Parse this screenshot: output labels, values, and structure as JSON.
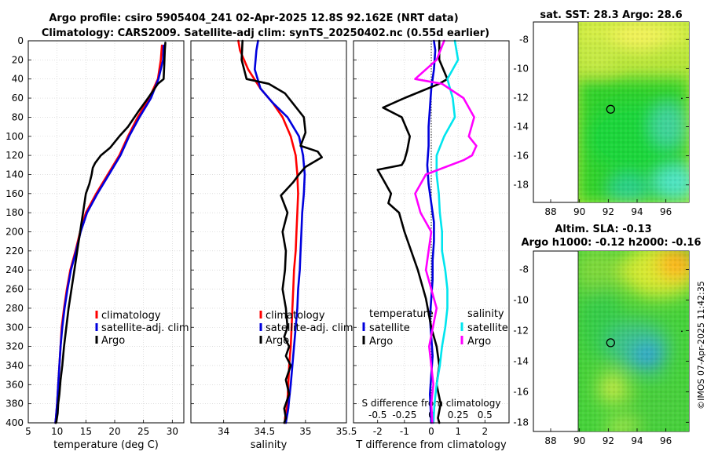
{
  "title": {
    "line1": "Argo profile: csiro 5905404_241 02-Apr-2025 12.8S 92.162E (NRT data)",
    "line2": "Climatology: CARS2009. Satellite-adj clim: synTS_20250402.nc (0.55d earlier)"
  },
  "stamp": "©IMOS 07-Apr-2025 11:42:35",
  "colors": {
    "climatology": "#ff0000",
    "satellite": "#0000dd",
    "argo": "#000000",
    "salinity_satellite": "#00e5ee",
    "salinity_argo": "#ff00ff",
    "grid": "#cccccc"
  },
  "chart_data": [
    {
      "type": "line",
      "title": "",
      "xlabel": "temperature (deg C)",
      "ylabel": "",
      "xlim": [
        5,
        32
      ],
      "ylim": [
        400,
        0
      ],
      "xticks": [
        5,
        10,
        15,
        20,
        25,
        30
      ],
      "xtick_labels": [
        "5",
        "10",
        "15",
        "20",
        "25",
        "30"
      ],
      "yticks": [
        0,
        20,
        40,
        60,
        80,
        100,
        120,
        140,
        160,
        180,
        200,
        220,
        240,
        260,
        280,
        300,
        320,
        340,
        360,
        380,
        400
      ],
      "ytick_labels": [
        "0",
        "20",
        "40",
        "60",
        "80",
        "100",
        "120",
        "140",
        "160",
        "180",
        "200",
        "220",
        "240",
        "260",
        "280",
        "300",
        "320",
        "340",
        "360",
        "380",
        "400"
      ],
      "grid": true,
      "legend_position": "lower-right",
      "series": [
        {
          "name": "climatology",
          "color": "#ff0000",
          "x": [
            28.2,
            28.0,
            27.5,
            26.0,
            24.0,
            22.3,
            20.8,
            18.8,
            16.8,
            15.0,
            14.0,
            13.2,
            12.3,
            11.7,
            11.2,
            10.8,
            10.6,
            10.4,
            10.2,
            10.0,
            9.8,
            9.7
          ],
          "y": [
            5,
            20,
            40,
            60,
            80,
            100,
            120,
            140,
            160,
            180,
            200,
            220,
            240,
            260,
            280,
            300,
            320,
            340,
            360,
            380,
            395,
            400
          ]
        },
        {
          "name": "satellite-adj. clim",
          "color": "#0000dd",
          "x": [
            28.5,
            28.4,
            27.6,
            26.3,
            24.3,
            22.5,
            21.0,
            19.0,
            17.0,
            15.2,
            14.1,
            13.3,
            12.4,
            11.8,
            11.3,
            10.9,
            10.6,
            10.4,
            10.2,
            10.0,
            9.8,
            9.7
          ],
          "y": [
            5,
            20,
            40,
            60,
            80,
            100,
            120,
            140,
            160,
            180,
            200,
            220,
            240,
            260,
            280,
            300,
            320,
            340,
            360,
            380,
            395,
            400
          ]
        },
        {
          "name": "Argo",
          "color": "#000000",
          "x": [
            28.8,
            28.7,
            28.6,
            28.5,
            27.5,
            25.8,
            24.0,
            22.3,
            20.8,
            19.2,
            17.6,
            16.6,
            16.2,
            16.0,
            15.6,
            15.0,
            14.8,
            14.5,
            14.0,
            13.5,
            13.0,
            12.5,
            12.0,
            11.6,
            11.2,
            10.9,
            10.6,
            10.4,
            10.2,
            10.1,
            9.9,
            9.8
          ],
          "y": [
            2,
            10,
            25,
            40,
            45,
            60,
            75,
            90,
            100,
            112,
            120,
            128,
            133,
            140,
            150,
            160,
            168,
            180,
            200,
            220,
            240,
            260,
            280,
            300,
            320,
            340,
            355,
            370,
            380,
            390,
            398,
            400
          ]
        }
      ]
    },
    {
      "type": "line",
      "title": "",
      "xlabel": "salinity",
      "ylabel": "",
      "xlim": [
        33.6,
        35.5
      ],
      "ylim": [
        400,
        0
      ],
      "xticks": [
        34,
        34.5,
        35,
        35.5
      ],
      "xtick_labels": [
        "34",
        "34.5",
        "35",
        "35.5"
      ],
      "grid": true,
      "legend_position": "lower-right",
      "series": [
        {
          "name": "climatology",
          "color": "#ff0000",
          "x": [
            34.18,
            34.2,
            34.3,
            34.45,
            34.6,
            34.72,
            34.82,
            34.88,
            34.9,
            34.91,
            34.9,
            34.89,
            34.88,
            34.86,
            34.85,
            34.84,
            34.83,
            34.82,
            34.8,
            34.79,
            34.78,
            34.77,
            34.76,
            34.75,
            34.75
          ],
          "y": [
            0,
            10,
            30,
            50,
            65,
            80,
            100,
            120,
            140,
            160,
            180,
            200,
            220,
            240,
            260,
            280,
            300,
            320,
            340,
            360,
            375,
            385,
            390,
            395,
            400
          ]
        },
        {
          "name": "satellite-adj. clim",
          "color": "#0000dd",
          "x": [
            34.42,
            34.4,
            34.38,
            34.45,
            34.6,
            34.78,
            34.92,
            34.97,
            34.99,
            34.98,
            34.96,
            34.95,
            34.94,
            34.93,
            34.91,
            34.9,
            34.88,
            34.86,
            34.84,
            34.82,
            34.8,
            34.79,
            34.78,
            34.77,
            34.76
          ],
          "y": [
            0,
            10,
            30,
            50,
            65,
            80,
            100,
            120,
            140,
            160,
            180,
            200,
            220,
            240,
            260,
            280,
            300,
            320,
            340,
            360,
            375,
            385,
            390,
            395,
            400
          ]
        },
        {
          "name": "Argo",
          "color": "#000000",
          "x": [
            34.23,
            34.22,
            34.28,
            34.55,
            34.75,
            34.98,
            35.0,
            34.94,
            35.15,
            35.2,
            35.0,
            34.92,
            34.85,
            34.7,
            34.78,
            34.72,
            34.76,
            34.75,
            34.72,
            34.76,
            34.78,
            34.74,
            34.8,
            34.76,
            34.82,
            34.76,
            34.8,
            34.74,
            34.76,
            34.74
          ],
          "y": [
            0,
            20,
            40,
            45,
            55,
            80,
            96,
            110,
            116,
            122,
            132,
            140,
            148,
            162,
            180,
            200,
            220,
            240,
            260,
            280,
            300,
            310,
            320,
            330,
            340,
            355,
            370,
            385,
            395,
            400
          ]
        }
      ]
    },
    {
      "type": "line",
      "title": "",
      "xlabel": "T difference from climatology",
      "x2label": "S difference from climatology",
      "ylabel": "",
      "xlim": [
        -2.9,
        2.9
      ],
      "ylim": [
        400,
        0
      ],
      "xticks": [
        -2,
        -1,
        0,
        1,
        2
      ],
      "xtick_labels": [
        "-2",
        "-1",
        "0",
        "1",
        "2"
      ],
      "x2lim": [
        -0.725,
        0.725
      ],
      "x2ticks": [
        -0.5,
        -0.25,
        0,
        0.25,
        0.5
      ],
      "x2tick_labels": [
        "-0.5",
        "-0.25",
        "0",
        "0.25",
        "0.5"
      ],
      "grid": true,
      "legend_position": "lower-center",
      "legend_headers": [
        "temperature",
        "salinity"
      ],
      "series": [
        {
          "name": "satellite",
          "group": "temperature",
          "color": "#0000dd",
          "x": [
            0.1,
            0.15,
            0.1,
            0.0,
            -0.05,
            -0.1,
            -0.1,
            -0.15,
            -0.1,
            0.0,
            0.1,
            0.1,
            0.05,
            0.05,
            0.0,
            -0.05,
            0.0,
            0.05,
            0.0,
            -0.05,
            0.0
          ],
          "y": [
            0,
            10,
            30,
            50,
            70,
            90,
            110,
            130,
            150,
            170,
            190,
            210,
            230,
            250,
            270,
            290,
            310,
            330,
            350,
            370,
            400
          ]
        },
        {
          "name": "Argo",
          "group": "temperature",
          "color": "#000000",
          "x": [
            0.3,
            0.3,
            0.6,
            0.3,
            -1.0,
            -1.8,
            -1.1,
            -0.8,
            -0.9,
            -1.0,
            -1.1,
            -2.0,
            -1.8,
            -1.5,
            -1.6,
            -1.2,
            -1.0,
            -0.5,
            -0.2,
            0.0,
            0.2,
            0.3,
            0.2,
            0.35,
            0.25,
            0.3
          ],
          "y": [
            0,
            20,
            40,
            45,
            60,
            70,
            80,
            100,
            115,
            125,
            130,
            135,
            145,
            160,
            170,
            180,
            200,
            240,
            270,
            300,
            320,
            340,
            360,
            380,
            395,
            400
          ]
        },
        {
          "name": "satellite",
          "group": "salinity",
          "color": "#00e5ee",
          "x": [
            0.22,
            0.25,
            0.15,
            0.2,
            0.22,
            0.12,
            0.05,
            0.05,
            0.07,
            0.08,
            0.1,
            0.1,
            0.13,
            0.15,
            0.15,
            0.13,
            0.1,
            0.08,
            0.05,
            0.03,
            0.02
          ],
          "y": [
            0,
            20,
            40,
            60,
            80,
            100,
            120,
            140,
            160,
            180,
            200,
            220,
            240,
            260,
            280,
            300,
            320,
            340,
            360,
            380,
            400
          ]
        },
        {
          "name": "Argo",
          "group": "salinity",
          "color": "#ff00ff",
          "x": [
            0.12,
            0.05,
            -0.15,
            0.1,
            0.3,
            0.4,
            0.35,
            0.42,
            0.38,
            0.3,
            -0.05,
            -0.15,
            -0.1,
            0.0,
            -0.05,
            0.05,
            -0.02,
            0.0,
            0.02,
            0.0,
            0.01
          ],
          "y": [
            0,
            20,
            40,
            45,
            60,
            80,
            100,
            110,
            120,
            125,
            140,
            160,
            180,
            200,
            240,
            280,
            320,
            340,
            360,
            380,
            400
          ]
        }
      ]
    },
    {
      "type": "heatmap",
      "title": "sat. SST: 28.3 Argo: 28.6",
      "xlim": [
        86.8,
        97.6
      ],
      "ylim": [
        -19.2,
        -6.8
      ],
      "xticks": [
        88,
        90,
        92,
        94,
        96
      ],
      "xtick_labels": [
        "88",
        "90",
        "92",
        "94",
        "96"
      ],
      "yticks": [
        -8,
        -10,
        -12,
        -14,
        -16,
        -18
      ],
      "ytick_labels": [
        "-8",
        "-10",
        "-12",
        "-14",
        "-16",
        "-18"
      ],
      "data_lon_range": [
        90,
        97.6
      ],
      "argo_position": {
        "lon": 92.162,
        "lat": -12.8
      }
    },
    {
      "type": "heatmap",
      "title": "Altim. SLA: -0.13",
      "subtitle": "Argo h1000: -0.12 h2000: -0.16",
      "xlim": [
        86.8,
        97.6
      ],
      "ylim": [
        -18.6,
        -6.8
      ],
      "xticks": [
        88,
        90,
        92,
        94,
        96
      ],
      "xtick_labels": [
        "88",
        "90",
        "92",
        "94",
        "96"
      ],
      "yticks": [
        -8,
        -10,
        -12,
        -14,
        -16,
        -18
      ],
      "ytick_labels": [
        "-8",
        "-10",
        "-12",
        "-14",
        "-16",
        "-18"
      ],
      "data_lon_range": [
        90,
        97.6
      ],
      "argo_position": {
        "lon": 92.162,
        "lat": -12.8
      }
    }
  ]
}
